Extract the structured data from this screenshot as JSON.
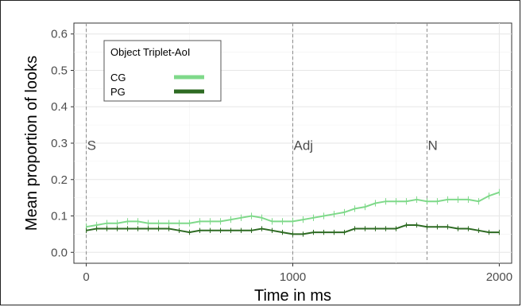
{
  "chart_data": {
    "type": "line",
    "title": "",
    "xlabel": "Time in ms",
    "ylabel": "Mean proportion of looks",
    "xlim": [
      -60,
      2060
    ],
    "ylim": [
      -0.03,
      0.63
    ],
    "xticks": [
      0,
      1000,
      2000
    ],
    "xtick_labels": [
      "0",
      "1000",
      "2000"
    ],
    "yticks": [
      0.0,
      0.1,
      0.2,
      0.3,
      0.4,
      0.5,
      0.6
    ],
    "ytick_labels": [
      "0.0",
      "0.1",
      "0.2",
      "0.3",
      "0.4",
      "0.5",
      "0.6"
    ],
    "grid": true,
    "legend": {
      "title": "Object Triplet-AoI",
      "position": "top-left",
      "entries": [
        "CG",
        "PG"
      ]
    },
    "markers": [
      {
        "label": "S",
        "x": 0,
        "y": 0.295
      },
      {
        "label": "Adj",
        "x": 1000,
        "y": 0.295
      },
      {
        "label": "N",
        "x": 1650,
        "y": 0.295
      }
    ],
    "x": [
      0,
      50,
      100,
      150,
      200,
      250,
      300,
      350,
      400,
      450,
      500,
      550,
      600,
      650,
      700,
      750,
      800,
      850,
      900,
      950,
      1000,
      1050,
      1100,
      1150,
      1200,
      1250,
      1300,
      1350,
      1400,
      1450,
      1500,
      1550,
      1600,
      1650,
      1700,
      1750,
      1800,
      1850,
      1900,
      1950,
      2000
    ],
    "series": [
      {
        "name": "CG",
        "color": "#7fd98a",
        "values": [
          0.07,
          0.075,
          0.08,
          0.08,
          0.085,
          0.085,
          0.08,
          0.08,
          0.08,
          0.08,
          0.08,
          0.085,
          0.085,
          0.085,
          0.09,
          0.095,
          0.1,
          0.095,
          0.085,
          0.085,
          0.085,
          0.09,
          0.095,
          0.1,
          0.105,
          0.11,
          0.12,
          0.125,
          0.135,
          0.14,
          0.14,
          0.14,
          0.145,
          0.14,
          0.14,
          0.145,
          0.145,
          0.145,
          0.14,
          0.155,
          0.165
        ],
        "error": 0.009
      },
      {
        "name": "PG",
        "color": "#2d6a22",
        "values": [
          0.06,
          0.065,
          0.065,
          0.065,
          0.065,
          0.065,
          0.065,
          0.065,
          0.065,
          0.06,
          0.055,
          0.06,
          0.06,
          0.06,
          0.06,
          0.06,
          0.06,
          0.065,
          0.06,
          0.055,
          0.05,
          0.05,
          0.055,
          0.055,
          0.055,
          0.055,
          0.065,
          0.065,
          0.065,
          0.065,
          0.065,
          0.075,
          0.075,
          0.07,
          0.07,
          0.07,
          0.065,
          0.065,
          0.06,
          0.055,
          0.055
        ],
        "error": 0.007
      }
    ]
  }
}
